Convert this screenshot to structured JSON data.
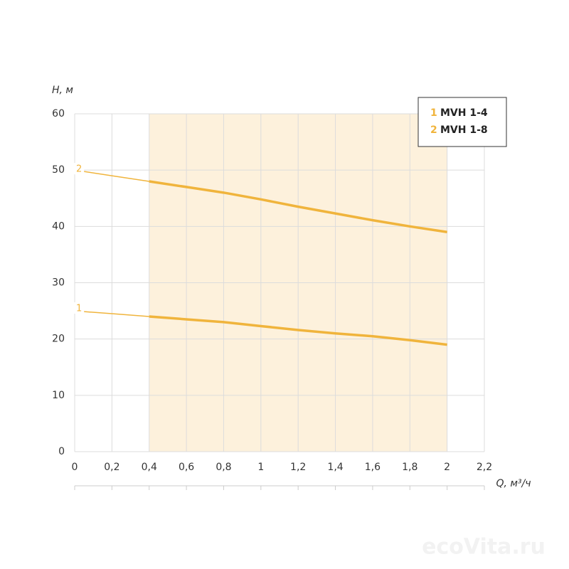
{
  "chart_data": {
    "type": "line",
    "x_label": "Q, м³/ч",
    "y_label": "H, м",
    "x": [
      0,
      0.2,
      0.4,
      0.6,
      0.8,
      1,
      1.2,
      1.4,
      1.6,
      1.8,
      2
    ],
    "series": [
      {
        "label": "1",
        "name": "MVH 1-4",
        "color": "#f0b43c",
        "values": [
          25,
          24.5,
          24,
          23.5,
          23,
          22.3,
          21.6,
          21,
          20.5,
          19.8,
          19
        ]
      },
      {
        "label": "2",
        "name": "MVH 1-8",
        "color": "#f0b43c",
        "values": [
          50,
          49,
          48,
          47,
          46,
          44.8,
          43.5,
          42.3,
          41.1,
          40,
          39
        ]
      }
    ],
    "working_range": [
      0.4,
      2
    ],
    "working_color": "#fdf1dc",
    "xlim": [
      0,
      2.2
    ],
    "xticks": [
      0,
      {
        "value": 0.2,
        "label": "0,2"
      },
      {
        "value": 0.4,
        "label": "0,4"
      },
      {
        "value": 0.6,
        "label": "0,6"
      },
      {
        "value": 0.8,
        "label": "0,8"
      },
      1,
      {
        "value": 1.2,
        "label": "1,2"
      },
      {
        "value": 1.4,
        "label": "1,4"
      },
      {
        "value": 1.6,
        "label": "1,6"
      },
      {
        "value": 1.8,
        "label": "1,8"
      },
      2,
      {
        "value": 2.2,
        "label": "2,2"
      }
    ],
    "ylim": [
      0,
      60
    ],
    "yticks": [
      0,
      10,
      20,
      30,
      40,
      50,
      60
    ],
    "grid": true,
    "legend": "top-right",
    "watermark": "ecoVita.ru"
  }
}
